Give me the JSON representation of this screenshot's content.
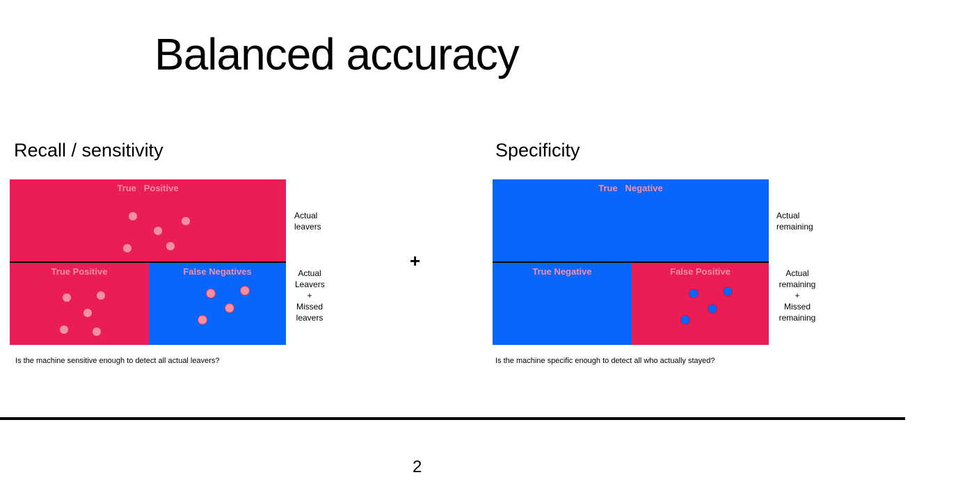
{
  "title": "Balanced accuracy",
  "operator": "+",
  "page_number": "2",
  "colors": {
    "positive_red": "#ea1e55",
    "negative_blue": "#0866ff",
    "pink_dot": "#f48fa4",
    "pink_text": "#f48fa4",
    "blue_dot": "#0866ff"
  },
  "recall": {
    "heading": "Recall / sensitivity",
    "top_label": "True   Positive",
    "bottom_left_label": "True Positive",
    "bottom_right_label": "False Negatives",
    "top_note": "Actual\nleavers",
    "bottom_note": "Actual\nLeavers\n+\nMissed\nleavers",
    "question": "Is the machine sensitive enough to detect all actual leavers?"
  },
  "specificity": {
    "heading": "Specificity",
    "top_label": "True   Negative",
    "bottom_left_label": "True Negative",
    "bottom_right_label": "False Positive",
    "top_note": "Actual\nremaining",
    "bottom_note": "Actual\nremaining\n+\nMissed\nremaining",
    "question": "Is the machine specific enough to detect all who actually stayed?"
  }
}
